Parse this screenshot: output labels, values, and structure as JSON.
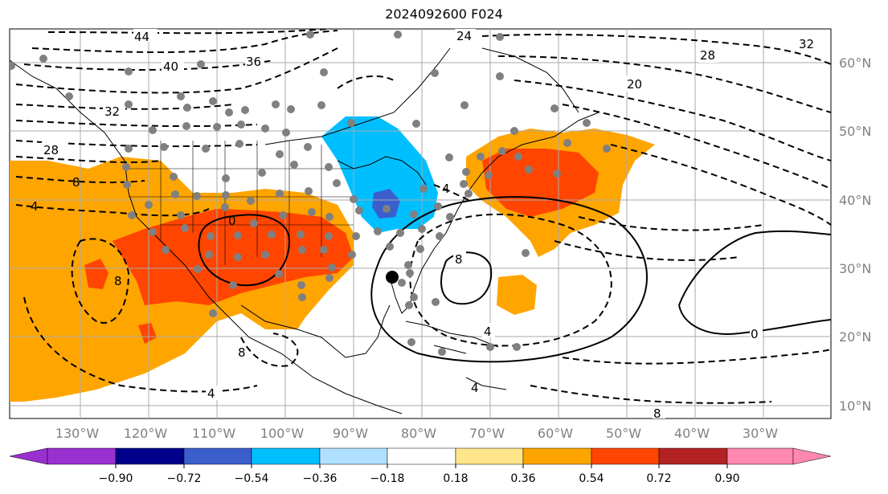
{
  "title": "2024092600 F024",
  "lon_labels": [
    "130°W",
    "120°W",
    "110°W",
    "100°W",
    "90°W",
    "80°W",
    "70°W",
    "60°W",
    "50°W",
    "40°W",
    "30°W"
  ],
  "lat_labels": [
    "60°N",
    "50°N",
    "40°N",
    "30°N",
    "20°N",
    "10°N"
  ],
  "colorbar": {
    "ticks": [
      "−0.90",
      "−0.72",
      "−0.54",
      "−0.36",
      "−0.18",
      "0.18",
      "0.36",
      "0.54",
      "0.72",
      "0.90"
    ],
    "colors": [
      "#9b30d0",
      "#00008b",
      "#3a5fcd",
      "#00bfff",
      "#b0e0ff",
      "#ffffff",
      "#ffe58a",
      "#ffa500",
      "#ff4500",
      "#b22222",
      "#ff88b0"
    ]
  },
  "contour_labels": {
    "c1": "44",
    "c2": "40",
    "c3": "36",
    "c4": "24",
    "c5": "28",
    "c6": "32",
    "c7": "20",
    "c8": "32",
    "c9": "28",
    "c10": "8",
    "c11": "4",
    "c12": "8",
    "c13": "0",
    "c14": "4",
    "c15": "8",
    "c16": "4",
    "c17": "8",
    "c18": "4",
    "c19": "0",
    "c20": "4",
    "c21": "8"
  },
  "storm_marker": "hurricane-center"
}
